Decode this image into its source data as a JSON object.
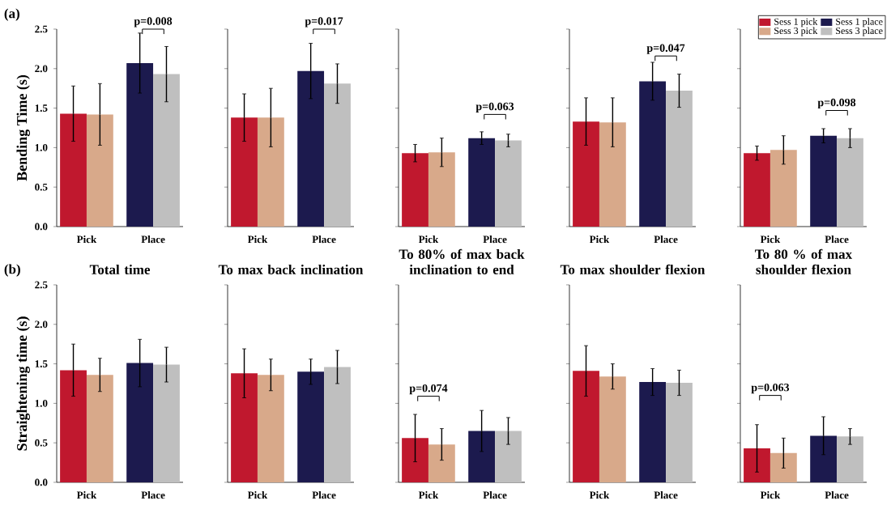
{
  "chart_data": [
    {
      "type": "bar",
      "categories": [
        "Pick",
        "Place"
      ],
      "ylabel": "Bending Time (s)",
      "ylim": [
        0,
        2.5
      ],
      "yticks": [
        {
          "value": 0,
          "label": "0.0"
        },
        {
          "value": 0.5,
          "label": "0.5"
        },
        {
          "value": 1,
          "label": "1.0"
        },
        {
          "value": 1.5,
          "label": "1.5"
        },
        {
          "value": 2,
          "label": "2.0"
        },
        {
          "value": 2.5,
          "label": "2.5"
        }
      ],
      "series": [
        {
          "color": "#c0182e",
          "values": [
            1.43,
            null
          ],
          "errors": [
            0.35,
            null
          ]
        },
        {
          "color": "#d8a98a",
          "values": [
            1.42,
            null
          ],
          "errors": [
            0.39,
            null
          ]
        },
        {
          "color": "#1c1a4e",
          "values": [
            null,
            2.07
          ],
          "errors": [
            null,
            0.38
          ]
        },
        {
          "color": "#bfbfbf",
          "values": [
            null,
            1.93
          ],
          "errors": [
            null,
            0.35
          ]
        }
      ],
      "annotations": [
        "(a)",
        "p=0.008"
      ]
    },
    {
      "type": "bar",
      "categories": [
        "Pick",
        "Place"
      ],
      "ylim": [
        0,
        2.5
      ],
      "yticks": [
        0,
        0.5,
        1,
        1.5,
        2,
        2.5
      ],
      "tick_labels": "x",
      "series": [
        {
          "color": "#c0182e",
          "values": [
            1.38,
            null
          ],
          "errors": [
            0.3,
            null
          ]
        },
        {
          "color": "#d8a98a",
          "values": [
            1.38,
            null
          ],
          "errors": [
            0.37,
            null
          ]
        },
        {
          "color": "#1c1a4e",
          "values": [
            null,
            1.97
          ],
          "errors": [
            null,
            0.35
          ]
        },
        {
          "color": "#bfbfbf",
          "values": [
            null,
            1.81
          ],
          "errors": [
            null,
            0.25
          ]
        }
      ],
      "annotations": [
        "p=0.017"
      ]
    },
    {
      "type": "bar",
      "categories": [
        "Pick",
        "Place"
      ],
      "ylim": [
        0,
        2.5
      ],
      "yticks": [
        0,
        0.5,
        1,
        1.5,
        2,
        2.5
      ],
      "tick_labels": "x",
      "series": [
        {
          "color": "#c0182e",
          "values": [
            0.93,
            null
          ],
          "errors": [
            0.11,
            null
          ]
        },
        {
          "color": "#d8a98a",
          "values": [
            0.94,
            null
          ],
          "errors": [
            0.18,
            null
          ]
        },
        {
          "color": "#1c1a4e",
          "values": [
            null,
            1.12
          ],
          "errors": [
            null,
            0.08
          ]
        },
        {
          "color": "#bfbfbf",
          "values": [
            null,
            1.09
          ],
          "errors": [
            null,
            0.08
          ]
        }
      ],
      "annotations": [
        "p=0.063"
      ]
    },
    {
      "type": "bar",
      "categories": [
        "Pick",
        "Place"
      ],
      "ylim": [
        0,
        2.5
      ],
      "yticks": [
        0,
        0.5,
        1,
        1.5,
        2,
        2.5
      ],
      "tick_labels": "x",
      "series": [
        {
          "color": "#c0182e",
          "values": [
            1.33,
            null
          ],
          "errors": [
            0.3,
            null
          ]
        },
        {
          "color": "#d8a98a",
          "values": [
            1.32,
            null
          ],
          "errors": [
            0.31,
            null
          ]
        },
        {
          "color": "#1c1a4e",
          "values": [
            null,
            1.84
          ],
          "errors": [
            null,
            0.24
          ]
        },
        {
          "color": "#bfbfbf",
          "values": [
            null,
            1.72
          ],
          "errors": [
            null,
            0.21
          ]
        }
      ],
      "annotations": [
        "p=0.047"
      ]
    },
    {
      "type": "bar",
      "categories": [
        "Pick",
        "Place"
      ],
      "ylim": [
        0,
        2.5
      ],
      "yticks": [
        0,
        0.5,
        1,
        1.5,
        2,
        2.5
      ],
      "tick_labels": "x",
      "legend": "top right",
      "series": [
        {
          "name": "Sess 1 pick",
          "color": "#c0182e",
          "values": [
            0.93,
            null
          ],
          "errors": [
            0.09,
            null
          ]
        },
        {
          "name": "Sess 3 pick",
          "color": "#d8a98a",
          "values": [
            0.97,
            null
          ],
          "errors": [
            0.18,
            null
          ]
        },
        {
          "name": "Sess 1 place",
          "color": "#1c1a4e",
          "values": [
            null,
            1.15
          ],
          "errors": [
            null,
            0.09
          ]
        },
        {
          "name": "Sess 3 place",
          "color": "#bfbfbf",
          "values": [
            null,
            1.12
          ],
          "errors": [
            null,
            0.12
          ]
        }
      ],
      "annotations": [
        "p=0.098"
      ]
    },
    {
      "type": "bar",
      "title": "Total time",
      "categories": [
        "Pick",
        "Place"
      ],
      "ylabel": "Straightening time (s)",
      "ylim": [
        0,
        2.5
      ],
      "yticks": [
        {
          "value": 0,
          "label": "0.0"
        },
        {
          "value": 0.5,
          "label": "0.5"
        },
        {
          "value": 1,
          "label": "1.0"
        },
        {
          "value": 1.5,
          "label": "1.5"
        },
        {
          "value": 2,
          "label": "2.0"
        },
        {
          "value": 2.5,
          "label": "2.5"
        }
      ],
      "series": [
        {
          "color": "#c0182e",
          "values": [
            1.42,
            null
          ],
          "errors": [
            0.33,
            null
          ]
        },
        {
          "color": "#d8a98a",
          "values": [
            1.36,
            null
          ],
          "errors": [
            0.21,
            null
          ]
        },
        {
          "color": "#1c1a4e",
          "values": [
            null,
            1.51
          ],
          "errors": [
            null,
            0.3
          ]
        },
        {
          "color": "#bfbfbf",
          "values": [
            null,
            1.49
          ],
          "errors": [
            null,
            0.22
          ]
        }
      ],
      "annotations": [
        "(b)"
      ]
    },
    {
      "type": "bar",
      "title": "To max back inclination",
      "categories": [
        "Pick",
        "Place"
      ],
      "ylim": [
        0,
        2.5
      ],
      "yticks": [
        0,
        0.5,
        1,
        1.5,
        2,
        2.5
      ],
      "tick_labels": "x",
      "series": [
        {
          "color": "#c0182e",
          "values": [
            1.38,
            null
          ],
          "errors": [
            0.31,
            null
          ]
        },
        {
          "color": "#d8a98a",
          "values": [
            1.36,
            null
          ],
          "errors": [
            0.2,
            null
          ]
        },
        {
          "color": "#1c1a4e",
          "values": [
            null,
            1.4
          ],
          "errors": [
            null,
            0.16
          ]
        },
        {
          "color": "#bfbfbf",
          "values": [
            null,
            1.46
          ],
          "errors": [
            null,
            0.21
          ]
        }
      ]
    },
    {
      "type": "bar",
      "title": "To 80% of max back inclination to end",
      "categories": [
        "Pick",
        "Place"
      ],
      "ylim": [
        0,
        2.5
      ],
      "yticks": [
        0,
        0.5,
        1,
        1.5,
        2,
        2.5
      ],
      "tick_labels": "x",
      "series": [
        {
          "color": "#c0182e",
          "values": [
            0.56,
            null
          ],
          "errors": [
            0.3,
            null
          ]
        },
        {
          "color": "#d8a98a",
          "values": [
            0.48,
            null
          ],
          "errors": [
            0.2,
            null
          ]
        },
        {
          "color": "#1c1a4e",
          "values": [
            null,
            0.65
          ],
          "errors": [
            null,
            0.26
          ]
        },
        {
          "color": "#bfbfbf",
          "values": [
            null,
            0.65
          ],
          "errors": [
            null,
            0.17
          ]
        }
      ],
      "annotations": [
        "p=0.074"
      ]
    },
    {
      "type": "bar",
      "title": "To max shoulder flexion",
      "categories": [
        "Pick",
        "Place"
      ],
      "ylim": [
        0,
        2.5
      ],
      "yticks": [
        0,
        0.5,
        1,
        1.5,
        2,
        2.5
      ],
      "tick_labels": "x",
      "series": [
        {
          "color": "#c0182e",
          "values": [
            1.41,
            null
          ],
          "errors": [
            0.32,
            null
          ]
        },
        {
          "color": "#d8a98a",
          "values": [
            1.34,
            null
          ],
          "errors": [
            0.16,
            null
          ]
        },
        {
          "color": "#1c1a4e",
          "values": [
            null,
            1.27
          ],
          "errors": [
            null,
            0.17
          ]
        },
        {
          "color": "#bfbfbf",
          "values": [
            null,
            1.26
          ],
          "errors": [
            null,
            0.16
          ]
        }
      ]
    },
    {
      "type": "bar",
      "title": "To 80 % of max shoulder flexion",
      "categories": [
        "Pick",
        "Place"
      ],
      "ylim": [
        0,
        2.5
      ],
      "yticks": [
        0,
        0.5,
        1,
        1.5,
        2,
        2.5
      ],
      "tick_labels": "x",
      "series": [
        {
          "color": "#c0182e",
          "values": [
            0.43,
            null
          ],
          "errors": [
            0.3,
            null
          ]
        },
        {
          "color": "#d8a98a",
          "values": [
            0.37,
            null
          ],
          "errors": [
            0.19,
            null
          ]
        },
        {
          "color": "#1c1a4e",
          "values": [
            null,
            0.59
          ],
          "errors": [
            null,
            0.24
          ]
        },
        {
          "color": "#bfbfbf",
          "values": [
            null,
            0.58
          ],
          "errors": [
            null,
            0.1
          ]
        }
      ],
      "annotations": [
        "p=0.063"
      ]
    }
  ]
}
